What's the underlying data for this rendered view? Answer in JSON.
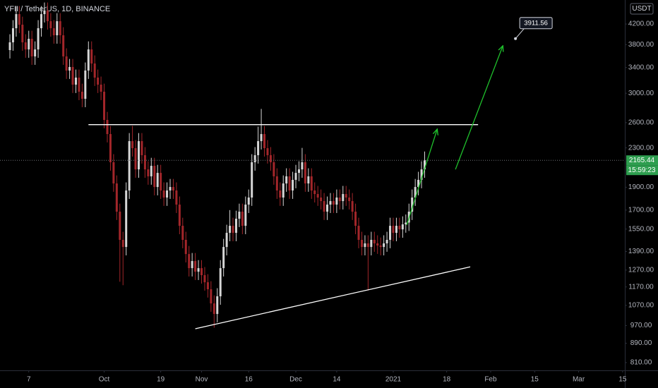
{
  "chart_data": {
    "type": "candlestick",
    "title": "YFII / TetherUS, 1D, BINANCE",
    "currency": "USDT",
    "countdown": "15:59:23",
    "up_color": "#d6d6d6",
    "down_color": "#a3262a",
    "last_color": "#2e9e4f",
    "log_scale": true,
    "grid": false,
    "ylim": [
      780,
      4720
    ],
    "yticks": [
      {
        "value": 810,
        "label": "810.00"
      },
      {
        "value": 890,
        "label": "890.00"
      },
      {
        "value": 970,
        "label": "970.00"
      },
      {
        "value": 1070,
        "label": "1070.00"
      },
      {
        "value": 1170,
        "label": "1170.00"
      },
      {
        "value": 1270,
        "label": "1270.00"
      },
      {
        "value": 1390,
        "label": "1390.00"
      },
      {
        "value": 1550,
        "label": "1550.00"
      },
      {
        "value": 1700,
        "label": "1700.00"
      },
      {
        "value": 1900,
        "label": "1900.00"
      },
      {
        "value": 2300,
        "label": "2300.00"
      },
      {
        "value": 2600,
        "label": "2600.00"
      },
      {
        "value": 3000,
        "label": "3000.00"
      },
      {
        "value": 3400,
        "label": "3400.00"
      },
      {
        "value": 3800,
        "label": "3800.00"
      },
      {
        "value": 4200,
        "label": "4200.00"
      }
    ],
    "xlim": [
      -3.15,
      195.7
    ],
    "xticks": [
      {
        "value": 6,
        "label": "7"
      },
      {
        "value": 30,
        "label": "Oct"
      },
      {
        "value": 48,
        "label": "19"
      },
      {
        "value": 61,
        "label": "Nov"
      },
      {
        "value": 76,
        "label": "16"
      },
      {
        "value": 91,
        "label": "Dec"
      },
      {
        "value": 104,
        "label": "14"
      },
      {
        "value": 122,
        "label": "2021"
      },
      {
        "value": 139,
        "label": "18"
      },
      {
        "value": 153,
        "label": "Feb"
      },
      {
        "value": 167,
        "label": "15"
      },
      {
        "value": 181,
        "label": "Mar"
      },
      {
        "value": 195,
        "label": "15"
      }
    ],
    "open": [
      3700,
      3842,
      4115,
      4407,
      4186,
      3842,
      3712,
      3909,
      3588,
      3712,
      4115,
      4407,
      4484,
      4258,
      4115,
      3976,
      4258,
      3976,
      3588,
      3350,
      3408,
      3128,
      3237,
      3022,
      2920,
      3350,
      3712,
      3466,
      3237,
      3128,
      3022,
      2635,
      2460,
      2145,
      1935,
      1687,
      1471,
      1421,
      1870,
      2377,
      2297,
      2072,
      2377,
      2220,
      2072,
      2003,
      2108,
      1902,
      2037,
      1870,
      1807,
      1870,
      1902,
      1870,
      1746,
      1575,
      1471,
      1373,
      1282,
      1327,
      1260,
      1282,
      1239,
      1197,
      1157,
      1080,
      1026,
      1118,
      1282,
      1421,
      1522,
      1575,
      1522,
      1630,
      1687,
      1575,
      1746,
      1807,
      2145,
      2220,
      2377,
      2460,
      2297,
      2220,
      2145,
      2003,
      1870,
      1807,
      1935,
      2003,
      1870,
      1969,
      2037,
      2072,
      2145,
      1935,
      2003,
      1870,
      1838,
      1807,
      1776,
      1687,
      1746,
      1776,
      1746,
      1807,
      1776,
      1838,
      1807,
      1776,
      1687,
      1575,
      1471,
      1421,
      1446,
      1421,
      1471,
      1446,
      1431,
      1421,
      1446,
      1471,
      1575,
      1522,
      1575,
      1548,
      1586,
      1600,
      1687,
      1807,
      1902,
      1969,
      2072
    ],
    "high": [
      3996,
      4280,
      4583,
      4583,
      4353,
      3996,
      4065,
      4065,
      3860,
      4280,
      4583,
      4663,
      4663,
      4428,
      4280,
      4428,
      4428,
      4135,
      3732,
      3544,
      3544,
      3366,
      3366,
      3143,
      3484,
      3860,
      3860,
      3605,
      3366,
      3253,
      3143,
      2740,
      2558,
      2231,
      2012,
      1754,
      1530,
      1945,
      2472,
      2560,
      2389,
      2472,
      2472,
      2309,
      2155,
      2192,
      2192,
      2118,
      2118,
      1945,
      1945,
      1978,
      1978,
      1945,
      1816,
      1638,
      1530,
      1428,
      1380,
      1380,
      1333,
      1333,
      1289,
      1245,
      1203,
      1123,
      1163,
      1333,
      1478,
      1583,
      1700,
      1638,
      1695,
      1754,
      1754,
      1816,
      1879,
      2231,
      2309,
      2550,
      2780,
      2558,
      2389,
      2309,
      2231,
      2083,
      1945,
      2012,
      2083,
      2083,
      2048,
      2118,
      2155,
      2300,
      2231,
      2083,
      2083,
      1945,
      1912,
      1879,
      1847,
      1816,
      1847,
      1847,
      1879,
      1879,
      1912,
      1912,
      1879,
      1847,
      1754,
      1638,
      1530,
      1504,
      1504,
      1530,
      1530,
      1504,
      1488,
      1504,
      1530,
      1638,
      1638,
      1638,
      1638,
      1649,
      1664,
      1754,
      1879,
      1978,
      2048,
      2155,
      2260
    ],
    "low": [
      3552,
      3688,
      3950,
      4019,
      3688,
      3564,
      3564,
      3444,
      3444,
      3564,
      3950,
      4231,
      4088,
      3950,
      3817,
      3817,
      3817,
      3444,
      3216,
      3216,
      3003,
      3003,
      2901,
      2803,
      2803,
      3216,
      3327,
      3108,
      3003,
      2901,
      2530,
      2362,
      2059,
      1858,
      1620,
      1200,
      1180,
      1364,
      1795,
      2205,
      1989,
      1989,
      2131,
      1989,
      1923,
      1923,
      1826,
      1826,
      1795,
      1735,
      1735,
      1795,
      1795,
      1676,
      1512,
      1412,
      1318,
      1231,
      1231,
      1210,
      1210,
      1189,
      1149,
      1111,
      1037,
      960,
      985,
      1073,
      1231,
      1364,
      1461,
      1461,
      1461,
      1565,
      1512,
      1512,
      1676,
      1735,
      2059,
      2131,
      2282,
      2205,
      2131,
      2059,
      1923,
      1795,
      1735,
      1735,
      1858,
      1795,
      1795,
      1890,
      1956,
      1989,
      1858,
      1858,
      1795,
      1764,
      1735,
      1705,
      1620,
      1620,
      1676,
      1676,
      1676,
      1705,
      1705,
      1735,
      1705,
      1620,
      1512,
      1412,
      1364,
      1364,
      1150,
      1364,
      1388,
      1374,
      1364,
      1364,
      1388,
      1412,
      1461,
      1461,
      1486,
      1486,
      1523,
      1536,
      1620,
      1735,
      1826,
      1890,
      1989
    ],
    "close": [
      3842,
      4115,
      4407,
      4186,
      3842,
      3712,
      3909,
      3588,
      3712,
      4115,
      4407,
      4484,
      4258,
      4115,
      3976,
      4258,
      3976,
      3588,
      3350,
      3408,
      3128,
      3237,
      3022,
      2920,
      3350,
      3712,
      3466,
      3237,
      3128,
      3022,
      2635,
      2460,
      2145,
      1935,
      1687,
      1471,
      1421,
      1870,
      2377,
      2297,
      2072,
      2377,
      2220,
      2072,
      2003,
      2108,
      1902,
      2037,
      1870,
      1807,
      1870,
      1902,
      1870,
      1746,
      1575,
      1471,
      1373,
      1282,
      1327,
      1260,
      1282,
      1239,
      1197,
      1157,
      1080,
      1026,
      1118,
      1282,
      1421,
      1522,
      1575,
      1522,
      1630,
      1687,
      1575,
      1746,
      1807,
      2145,
      2220,
      2377,
      2460,
      2297,
      2220,
      2145,
      2003,
      1870,
      1807,
      1935,
      2003,
      1870,
      1969,
      2037,
      2072,
      2145,
      1935,
      2003,
      1870,
      1838,
      1807,
      1776,
      1687,
      1746,
      1776,
      1746,
      1807,
      1776,
      1838,
      1807,
      1776,
      1687,
      1575,
      1471,
      1421,
      1446,
      1421,
      1471,
      1446,
      1431,
      1421,
      1446,
      1471,
      1575,
      1522,
      1575,
      1548,
      1586,
      1600,
      1687,
      1807,
      1902,
      1969,
      2072,
      2165.44
    ],
    "drawings": [
      {
        "x": [
          25,
          149
        ],
        "y": [
          2575,
          2575
        ],
        "color": "#ffffff",
        "arrow": false
      },
      {
        "x": [
          59,
          146.5
        ],
        "y": [
          955,
          1290
        ],
        "color": "#ffffff",
        "arrow": false
      },
      {
        "x": [
          126.3,
          136
        ],
        "y": [
          1582,
          2520
        ],
        "color": "#1fbf2c",
        "arrow": true
      },
      {
        "x": [
          141.8,
          156.9
        ],
        "y": [
          2072,
          3780
        ],
        "color": "#1fbf2c",
        "arrow": true
      }
    ],
    "callout": {
      "x": 160.9,
      "y": 3911.56
    }
  }
}
